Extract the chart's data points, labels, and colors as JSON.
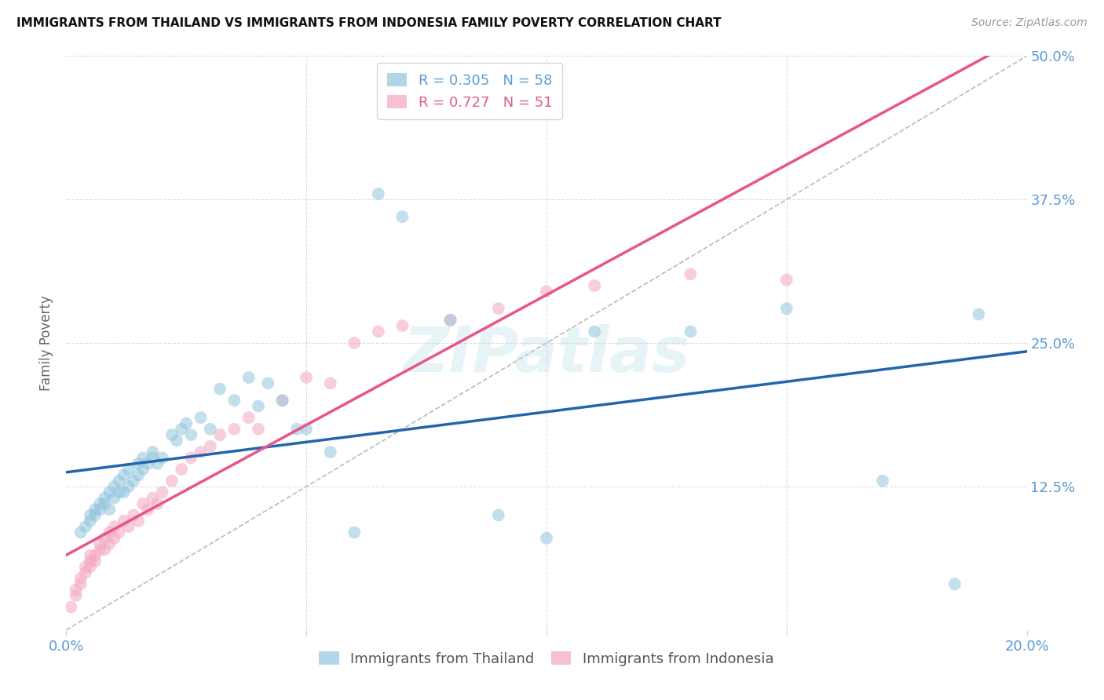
{
  "title": "IMMIGRANTS FROM THAILAND VS IMMIGRANTS FROM INDONESIA FAMILY POVERTY CORRELATION CHART",
  "source": "Source: ZipAtlas.com",
  "ylabel": "Family Poverty",
  "xlim": [
    0.0,
    0.2
  ],
  "ylim": [
    0.0,
    0.5
  ],
  "xticks": [
    0.0,
    0.05,
    0.1,
    0.15,
    0.2
  ],
  "yticks": [
    0.0,
    0.125,
    0.25,
    0.375,
    0.5
  ],
  "thailand_color": "#92c5de",
  "indonesia_color": "#f4a6c0",
  "thailand_R": 0.305,
  "thailand_N": 58,
  "indonesia_R": 0.727,
  "indonesia_N": 51,
  "thailand_line_color": "#2166ac",
  "indonesia_line_color": "#e8558a",
  "identity_line_color": "#bbbbbb",
  "grid_color": "#dddddd",
  "background_color": "#ffffff",
  "axis_tick_color": "#5b9bd5",
  "legend_label_color_thailand": "#5b9bd5",
  "legend_label_color_indonesia": "#e05c8a",
  "watermark": "ZIPatlas",
  "thailand_x": [
    0.003,
    0.004,
    0.005,
    0.005,
    0.006,
    0.006,
    0.007,
    0.007,
    0.008,
    0.008,
    0.009,
    0.009,
    0.01,
    0.01,
    0.011,
    0.011,
    0.012,
    0.012,
    0.013,
    0.013,
    0.014,
    0.015,
    0.015,
    0.016,
    0.016,
    0.017,
    0.018,
    0.018,
    0.019,
    0.02,
    0.022,
    0.023,
    0.024,
    0.025,
    0.026,
    0.028,
    0.03,
    0.032,
    0.035,
    0.038,
    0.04,
    0.042,
    0.045,
    0.048,
    0.05,
    0.055,
    0.06,
    0.065,
    0.07,
    0.08,
    0.09,
    0.1,
    0.11,
    0.13,
    0.15,
    0.17,
    0.185,
    0.19
  ],
  "thailand_y": [
    0.085,
    0.09,
    0.095,
    0.1,
    0.1,
    0.105,
    0.105,
    0.11,
    0.11,
    0.115,
    0.105,
    0.12,
    0.115,
    0.125,
    0.12,
    0.13,
    0.12,
    0.135,
    0.125,
    0.14,
    0.13,
    0.135,
    0.145,
    0.14,
    0.15,
    0.145,
    0.15,
    0.155,
    0.145,
    0.15,
    0.17,
    0.165,
    0.175,
    0.18,
    0.17,
    0.185,
    0.175,
    0.21,
    0.2,
    0.22,
    0.195,
    0.215,
    0.2,
    0.175,
    0.175,
    0.155,
    0.085,
    0.38,
    0.36,
    0.27,
    0.1,
    0.08,
    0.26,
    0.26,
    0.28,
    0.13,
    0.04,
    0.275
  ],
  "indonesia_x": [
    0.001,
    0.002,
    0.002,
    0.003,
    0.003,
    0.004,
    0.004,
    0.005,
    0.005,
    0.005,
    0.006,
    0.006,
    0.007,
    0.007,
    0.008,
    0.008,
    0.009,
    0.009,
    0.01,
    0.01,
    0.011,
    0.012,
    0.013,
    0.014,
    0.015,
    0.016,
    0.017,
    0.018,
    0.019,
    0.02,
    0.022,
    0.024,
    0.026,
    0.028,
    0.03,
    0.032,
    0.035,
    0.038,
    0.04,
    0.045,
    0.05,
    0.055,
    0.06,
    0.065,
    0.07,
    0.08,
    0.09,
    0.1,
    0.11,
    0.13,
    0.15
  ],
  "indonesia_y": [
    0.02,
    0.03,
    0.035,
    0.04,
    0.045,
    0.05,
    0.055,
    0.055,
    0.06,
    0.065,
    0.06,
    0.065,
    0.07,
    0.075,
    0.07,
    0.08,
    0.075,
    0.085,
    0.08,
    0.09,
    0.085,
    0.095,
    0.09,
    0.1,
    0.095,
    0.11,
    0.105,
    0.115,
    0.11,
    0.12,
    0.13,
    0.14,
    0.15,
    0.155,
    0.16,
    0.17,
    0.175,
    0.185,
    0.175,
    0.2,
    0.22,
    0.215,
    0.25,
    0.26,
    0.265,
    0.27,
    0.28,
    0.295,
    0.3,
    0.31,
    0.305
  ]
}
